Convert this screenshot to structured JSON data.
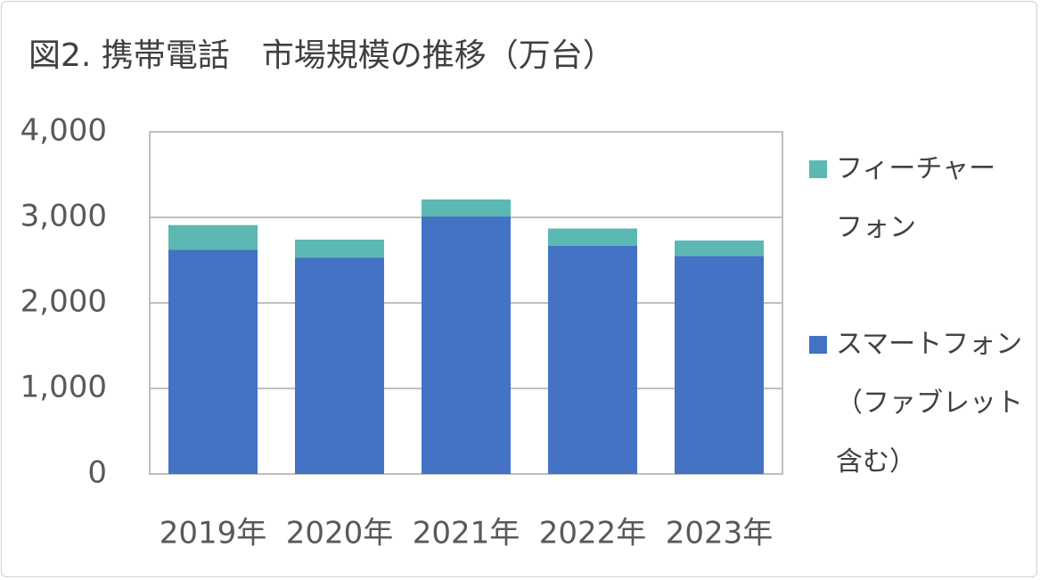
{
  "chart_data": {
    "type": "stacked_bar",
    "title": "図2. 携帯電話　市場規模の推移（万台）",
    "categories": [
      "2019年",
      "2020年",
      "2021年",
      "2022年",
      "2023年"
    ],
    "series": [
      {
        "name": "スマートフォン（ファブレット含む）",
        "color": "#4472c4",
        "values": [
          2620,
          2530,
          3010,
          2670,
          2550
        ]
      },
      {
        "name": "フィーチャーフォン",
        "color": "#5bb8b2",
        "values": [
          290,
          210,
          200,
          200,
          180
        ]
      }
    ],
    "ylim": [
      0,
      4000
    ],
    "yticks": [
      0,
      {
        "value": 1000,
        "label": "1,000"
      },
      {
        "value": 2000,
        "label": "2,000"
      },
      {
        "value": 3000,
        "label": "3,000"
      },
      {
        "value": 4000,
        "label": "4,000"
      }
    ],
    "grid": true,
    "legend": "right"
  }
}
